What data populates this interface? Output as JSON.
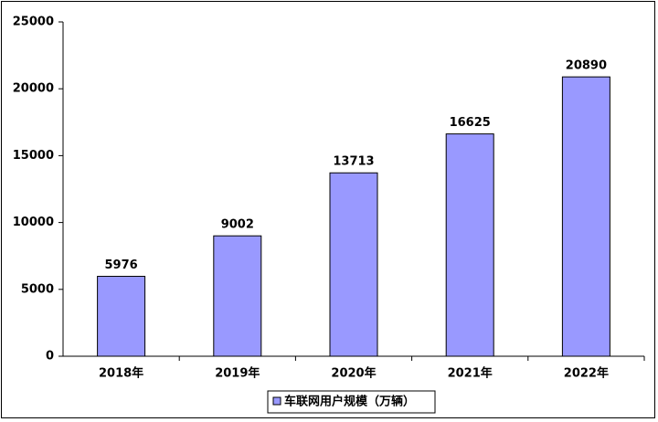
{
  "chart_data": {
    "type": "bar",
    "categories": [
      "2018年",
      "2019年",
      "2020年",
      "2021年",
      "2022年"
    ],
    "series": [
      {
        "name": "车联网用户规模（万辆）",
        "color": "#9999ff",
        "values": [
          5976,
          9002,
          13713,
          16625,
          20890
        ]
      }
    ],
    "ylim": [
      0,
      25000
    ],
    "yticks": [
      0,
      5000,
      10000,
      15000,
      20000,
      25000
    ],
    "legend": "bottom"
  }
}
